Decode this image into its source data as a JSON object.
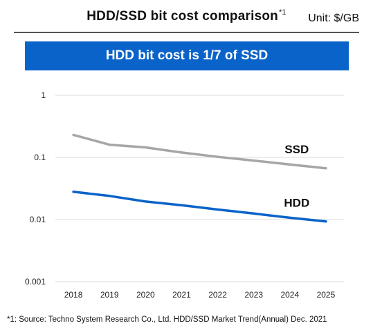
{
  "header": {
    "title": "HDD/SSD bit cost comparison",
    "footnote_ref": "*1",
    "unit": "Unit: $/GB"
  },
  "banner": {
    "text": "HDD bit cost is 1/7 of SSD"
  },
  "footnote": "*1: Source: Techno System Research Co., Ltd. HDD/SSD Market Trend(Annual) Dec. 2021",
  "chart_data": {
    "type": "line",
    "x": [
      "2018",
      "2019",
      "2020",
      "2021",
      "2022",
      "2023",
      "2024",
      "2025"
    ],
    "series": [
      {
        "name": "SSD",
        "color": "#a6a6a6",
        "values": [
          0.23,
          0.16,
          0.145,
          0.12,
          0.102,
          0.089,
          0.077,
          0.067
        ]
      },
      {
        "name": "HDD",
        "color": "#0a63c9",
        "values": [
          0.028,
          0.024,
          0.0195,
          0.017,
          0.0145,
          0.0125,
          0.0107,
          0.0093
        ]
      }
    ],
    "yscale": "log",
    "ylim": [
      0.001,
      1
    ],
    "yticks": [
      {
        "value": 1,
        "label": "1"
      },
      {
        "value": 0.1,
        "label": "0.1"
      },
      {
        "value": 0.01,
        "label": "0.01"
      },
      {
        "value": 0.001,
        "label": "0.001"
      }
    ],
    "grid": true,
    "legend": "inline"
  }
}
